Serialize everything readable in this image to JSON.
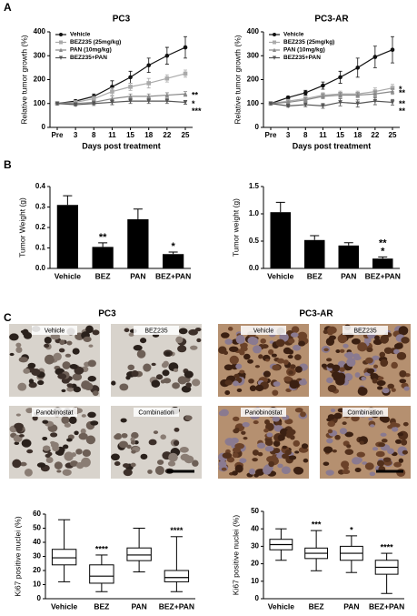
{
  "figure": {
    "panels": [
      "A",
      "B",
      "C"
    ],
    "micrographs": [
      {
        "title": "PC3",
        "labels": [
          "Vehicle",
          "BEZ235",
          "Panobinostat",
          "Combination"
        ]
      },
      {
        "title": "PC3-AR",
        "labels": [
          "Vehicle",
          "BEZ235",
          "Panobinostat",
          "Combination"
        ]
      }
    ]
  },
  "chart_data": [
    {
      "type": "line",
      "title": "PC3",
      "xlabel": "Days post treatment",
      "ylabel": "Relative tumor growth (%)",
      "categories": [
        "Pre",
        "3",
        "8",
        "11",
        "15",
        "18",
        "22",
        "25"
      ],
      "ylim": [
        0,
        400
      ],
      "yticks": [
        0,
        100,
        200,
        300,
        400
      ],
      "legend": "upper left",
      "series": [
        {
          "name": "Vehicle",
          "color": "#111111",
          "marker": "circle",
          "values": [
            100,
            110,
            130,
            170,
            210,
            260,
            300,
            335
          ],
          "errors": [
            0,
            5,
            10,
            25,
            25,
            30,
            35,
            45
          ],
          "annotations": []
        },
        {
          "name": "BEZ235 (25mg/kg)",
          "color": "#aaaaaa",
          "marker": "square",
          "values": [
            100,
            105,
            120,
            150,
            170,
            185,
            205,
            225
          ],
          "errors": [
            0,
            5,
            10,
            15,
            15,
            20,
            15,
            15
          ],
          "annotations": []
        },
        {
          "name": "PAN (10mg/kg)",
          "color": "#888888",
          "marker": "triangle",
          "values": [
            100,
            100,
            105,
            120,
            130,
            130,
            135,
            140
          ],
          "errors": [
            0,
            5,
            8,
            10,
            10,
            10,
            10,
            10
          ],
          "annotations": [
            "**"
          ]
        },
        {
          "name": "BEZ235+PAN",
          "color": "#555555",
          "marker": "triangle-down",
          "values": [
            100,
            95,
            100,
            105,
            110,
            110,
            110,
            105
          ],
          "errors": [
            0,
            5,
            8,
            10,
            10,
            10,
            10,
            8
          ],
          "annotations": [
            "*",
            "***"
          ]
        }
      ]
    },
    {
      "type": "line",
      "title": "PC3-AR",
      "xlabel": "Days post treatment",
      "ylabel": "Relative tumor growth (%)",
      "categories": [
        "Pre",
        "3",
        "8",
        "11",
        "15",
        "18",
        "22",
        "25"
      ],
      "ylim": [
        0,
        400
      ],
      "yticks": [
        0,
        100,
        200,
        300,
        400
      ],
      "legend": "upper left",
      "series": [
        {
          "name": "Vehicle",
          "color": "#111111",
          "marker": "circle",
          "values": [
            100,
            125,
            145,
            175,
            210,
            250,
            295,
            325
          ],
          "errors": [
            0,
            5,
            10,
            15,
            25,
            40,
            45,
            55
          ],
          "annotations": []
        },
        {
          "name": "BEZ235 (25mg/kg)",
          "color": "#aaaaaa",
          "marker": "square",
          "values": [
            100,
            110,
            120,
            135,
            140,
            140,
            150,
            165
          ],
          "errors": [
            0,
            5,
            10,
            10,
            12,
            12,
            15,
            15
          ],
          "annotations": [
            "*"
          ]
        },
        {
          "name": "PAN (10mg/kg)",
          "color": "#888888",
          "marker": "triangle",
          "values": [
            100,
            105,
            115,
            130,
            135,
            135,
            140,
            150
          ],
          "errors": [
            0,
            5,
            8,
            10,
            10,
            10,
            12,
            12
          ],
          "annotations": [
            "**"
          ]
        },
        {
          "name": "BEZ235+PAN",
          "color": "#555555",
          "marker": "triangle-down",
          "values": [
            100,
            90,
            95,
            90,
            105,
            100,
            110,
            105
          ],
          "errors": [
            0,
            5,
            8,
            10,
            15,
            15,
            15,
            12
          ],
          "annotations": [
            "**",
            "**"
          ]
        }
      ]
    },
    {
      "type": "bar",
      "ylabel": "Tumor Weight (g)",
      "categories": [
        "Vehicle",
        "BEZ",
        "PAN",
        "BEZ+PAN"
      ],
      "values": [
        0.31,
        0.105,
        0.24,
        0.07
      ],
      "errors": [
        0.045,
        0.02,
        0.05,
        0.01
      ],
      "color": "#000000",
      "annotations": [
        null,
        [
          "**"
        ],
        null,
        [
          "*"
        ]
      ],
      "ylim": [
        0,
        0.4
      ],
      "yticks": [
        {
          "value": 0,
          "label": "0.0"
        },
        0.1,
        0.2,
        0.3,
        0.4
      ]
    },
    {
      "type": "bar",
      "ylabel": "Tumor weight (g)",
      "categories": [
        "Vehicle",
        "BEZ",
        "PAN",
        "BEZ+PAN"
      ],
      "values": [
        1.03,
        0.52,
        0.42,
        0.18
      ],
      "errors": [
        0.18,
        0.08,
        0.05,
        0.03
      ],
      "color": "#000000",
      "annotations": [
        null,
        null,
        null,
        [
          "**",
          "*"
        ]
      ],
      "ylim": [
        0,
        1.5
      ],
      "yticks": [
        {
          "value": 0,
          "label": "0.0"
        },
        0.5,
        {
          "value": 1,
          "label": "1.0"
        },
        1.5
      ]
    },
    {
      "type": "box",
      "ylabel": "Ki67 positive nuclei (%)",
      "categories": [
        "Vehicle",
        "BEZ",
        "PAN",
        "BEZ+PAN"
      ],
      "min": [
        12,
        5,
        19,
        5
      ],
      "q1": [
        24,
        11,
        27,
        12
      ],
      "median": [
        29,
        16,
        31,
        15
      ],
      "q3": [
        35,
        24,
        36,
        20
      ],
      "max": [
        56,
        31,
        50,
        44
      ],
      "annotations": [
        null,
        [
          "****"
        ],
        null,
        [
          "****"
        ]
      ],
      "ylim": [
        0,
        60
      ],
      "yticks": [
        0,
        10,
        20,
        30,
        40,
        50,
        60
      ]
    },
    {
      "type": "box",
      "ylabel": "Ki67 positive nuclei (%)",
      "categories": [
        "Vehicle",
        "BEZ",
        "PAN",
        "BEZ+PAN"
      ],
      "min": [
        22,
        16,
        15,
        3
      ],
      "q1": [
        28,
        23,
        22,
        14
      ],
      "median": [
        31,
        26,
        26,
        18
      ],
      "q3": [
        34,
        29,
        30,
        22
      ],
      "max": [
        40,
        39,
        36,
        26
      ],
      "annotations": [
        null,
        [
          "***"
        ],
        [
          "*"
        ],
        [
          "****"
        ]
      ],
      "ylim": [
        0,
        50
      ],
      "yticks": [
        0,
        10,
        20,
        30,
        40,
        50
      ]
    }
  ]
}
